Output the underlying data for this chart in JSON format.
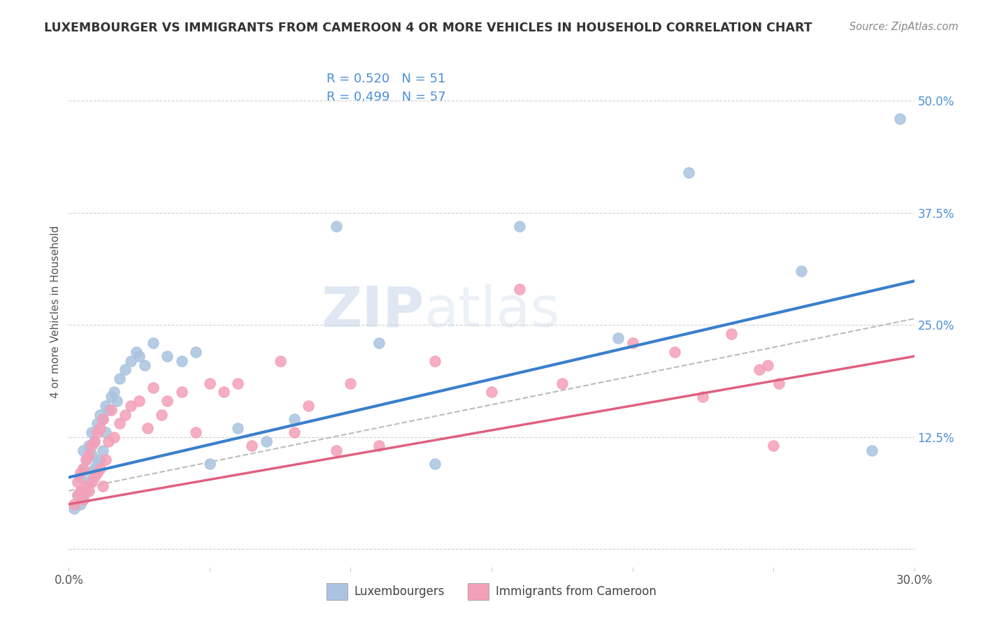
{
  "title": "LUXEMBOURGER VS IMMIGRANTS FROM CAMEROON 4 OR MORE VEHICLES IN HOUSEHOLD CORRELATION CHART",
  "source": "Source: ZipAtlas.com",
  "ylabel": "4 or more Vehicles in Household",
  "xlim": [
    0.0,
    0.3
  ],
  "ylim": [
    -0.02,
    0.55
  ],
  "xticks": [
    0.0,
    0.05,
    0.1,
    0.15,
    0.2,
    0.25,
    0.3
  ],
  "xticklabels": [
    "0.0%",
    "",
    "",
    "",
    "",
    "",
    "30.0%"
  ],
  "yticks": [
    0.0,
    0.125,
    0.25,
    0.375,
    0.5
  ],
  "yticklabels": [
    "",
    "12.5%",
    "25.0%",
    "37.5%",
    "50.0%"
  ],
  "blue_color": "#aac4e0",
  "pink_color": "#f4a0b8",
  "blue_line_color": "#3a7fcc",
  "pink_line_color": "#e06080",
  "legend_r1": "R = 0.520",
  "legend_n1": "N = 51",
  "legend_r2": "R = 0.499",
  "legend_n2": "N = 57",
  "legend_label1": "Luxembourgers",
  "legend_label2": "Immigrants from Cameroon",
  "watermark_zip": "ZIP",
  "watermark_atlas": "atlas",
  "blue_scatter_x": [
    0.002,
    0.003,
    0.004,
    0.004,
    0.005,
    0.005,
    0.005,
    0.006,
    0.006,
    0.007,
    0.007,
    0.008,
    0.008,
    0.008,
    0.009,
    0.009,
    0.01,
    0.01,
    0.011,
    0.011,
    0.012,
    0.012,
    0.013,
    0.013,
    0.014,
    0.015,
    0.016,
    0.017,
    0.018,
    0.02,
    0.022,
    0.024,
    0.025,
    0.027,
    0.03,
    0.035,
    0.04,
    0.045,
    0.05,
    0.06,
    0.07,
    0.08,
    0.095,
    0.11,
    0.13,
    0.16,
    0.195,
    0.22,
    0.26,
    0.285,
    0.295
  ],
  "blue_scatter_y": [
    0.045,
    0.06,
    0.05,
    0.08,
    0.055,
    0.09,
    0.11,
    0.065,
    0.1,
    0.075,
    0.115,
    0.085,
    0.105,
    0.13,
    0.09,
    0.12,
    0.095,
    0.14,
    0.1,
    0.15,
    0.11,
    0.145,
    0.13,
    0.16,
    0.155,
    0.17,
    0.175,
    0.165,
    0.19,
    0.2,
    0.21,
    0.22,
    0.215,
    0.205,
    0.23,
    0.215,
    0.21,
    0.22,
    0.095,
    0.135,
    0.12,
    0.145,
    0.36,
    0.23,
    0.095,
    0.36,
    0.235,
    0.42,
    0.31,
    0.11,
    0.48
  ],
  "pink_scatter_x": [
    0.002,
    0.003,
    0.003,
    0.004,
    0.004,
    0.005,
    0.005,
    0.006,
    0.006,
    0.007,
    0.007,
    0.008,
    0.008,
    0.009,
    0.009,
    0.01,
    0.01,
    0.011,
    0.011,
    0.012,
    0.012,
    0.013,
    0.014,
    0.015,
    0.016,
    0.018,
    0.02,
    0.022,
    0.025,
    0.028,
    0.03,
    0.033,
    0.035,
    0.04,
    0.045,
    0.05,
    0.055,
    0.06,
    0.065,
    0.075,
    0.08,
    0.085,
    0.095,
    0.1,
    0.11,
    0.13,
    0.15,
    0.16,
    0.175,
    0.2,
    0.215,
    0.225,
    0.235,
    0.245,
    0.248,
    0.25,
    0.252
  ],
  "pink_scatter_y": [
    0.05,
    0.06,
    0.075,
    0.065,
    0.085,
    0.055,
    0.09,
    0.07,
    0.1,
    0.065,
    0.105,
    0.075,
    0.115,
    0.08,
    0.12,
    0.085,
    0.13,
    0.09,
    0.135,
    0.07,
    0.145,
    0.1,
    0.12,
    0.155,
    0.125,
    0.14,
    0.15,
    0.16,
    0.165,
    0.135,
    0.18,
    0.15,
    0.165,
    0.175,
    0.13,
    0.185,
    0.175,
    0.185,
    0.115,
    0.21,
    0.13,
    0.16,
    0.11,
    0.185,
    0.115,
    0.21,
    0.175,
    0.29,
    0.185,
    0.23,
    0.22,
    0.17,
    0.24,
    0.2,
    0.205,
    0.115,
    0.185
  ],
  "blue_trend_slope": 0.73,
  "blue_trend_intercept": 0.08,
  "pink_trend_slope": 0.55,
  "pink_trend_intercept": 0.05,
  "background_color": "#ffffff",
  "grid_color": "#cccccc",
  "tick_color": "#4a90d9",
  "title_color": "#333333",
  "source_color": "#888888"
}
